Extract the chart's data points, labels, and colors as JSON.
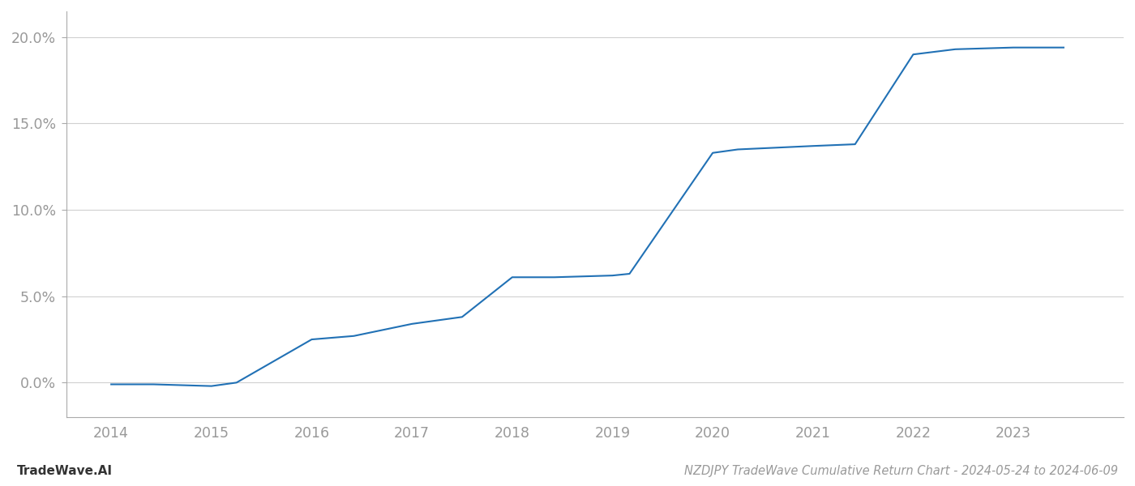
{
  "x_years": [
    2014.0,
    2014.42,
    2015.0,
    2015.25,
    2016.0,
    2016.42,
    2017.0,
    2017.5,
    2018.0,
    2018.42,
    2019.0,
    2019.17,
    2020.0,
    2020.25,
    2021.0,
    2021.42,
    2022.0,
    2022.42,
    2023.0,
    2023.5
  ],
  "y_values": [
    -0.001,
    -0.001,
    -0.002,
    0.0,
    0.025,
    0.027,
    0.034,
    0.038,
    0.061,
    0.061,
    0.062,
    0.063,
    0.133,
    0.135,
    0.137,
    0.138,
    0.19,
    0.193,
    0.194,
    0.194
  ],
  "line_color": "#2171b5",
  "background_color": "#ffffff",
  "grid_color": "#d0d0d0",
  "axis_color": "#aaaaaa",
  "tick_label_color": "#999999",
  "title_text": "NZDJPY TradeWave Cumulative Return Chart - 2024-05-24 to 2024-06-09",
  "footer_left": "TradeWave.AI",
  "ylim_min": -0.02,
  "ylim_max": 0.215,
  "yticks": [
    0.0,
    0.05,
    0.1,
    0.15,
    0.2
  ],
  "ytick_labels": [
    "0.0%",
    "5.0%",
    "10.0%",
    "15.0%",
    "20.0%"
  ],
  "xlim_min": 2013.55,
  "xlim_max": 2024.1,
  "xticks": [
    2014,
    2015,
    2016,
    2017,
    2018,
    2019,
    2020,
    2021,
    2022,
    2023
  ],
  "line_width": 1.5,
  "title_fontsize": 10.5,
  "footer_fontsize": 11,
  "tick_fontsize": 12.5
}
